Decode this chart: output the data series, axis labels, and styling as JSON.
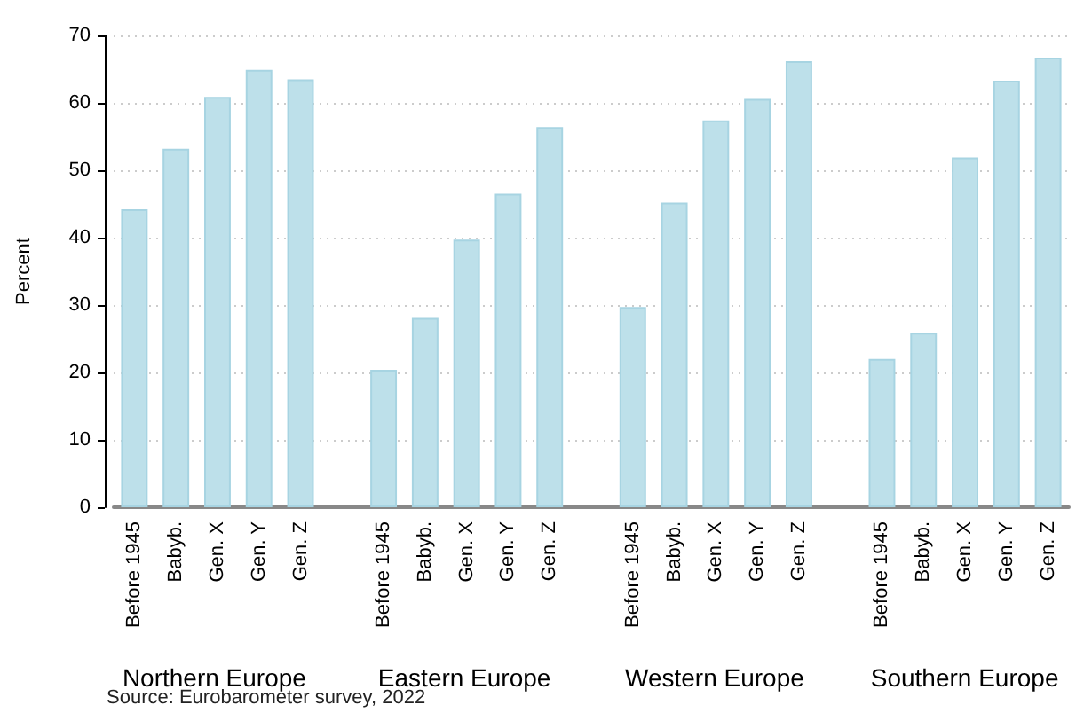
{
  "chart_data": {
    "type": "bar",
    "ylabel": "Percent",
    "categories": [
      "Before 1945",
      "Babyb.",
      "Gen. X",
      "Gen. Y",
      "Gen. Z",
      null,
      "Before 1945",
      "Babyb.",
      "Gen. X",
      "Gen. Y",
      "Gen. Z",
      null,
      "Before 1945",
      "Babyb.",
      "Gen. X",
      "Gen. Y",
      "Gen. Z",
      null,
      "Before 1945",
      "Babyb.",
      "Gen. X",
      "Gen. Y",
      "Gen. Z"
    ],
    "values": [
      44.2,
      53.2,
      60.9,
      64.9,
      63.5,
      null,
      20.4,
      28.1,
      39.7,
      46.5,
      56.4,
      null,
      29.7,
      45.2,
      57.4,
      60.6,
      66.2,
      null,
      22.0,
      25.9,
      51.9,
      63.3,
      66.7
    ],
    "color": "#bde0ea",
    "ylim": [
      0,
      70
    ],
    "yticks": [
      0,
      10,
      20,
      30,
      40,
      50,
      60,
      70
    ],
    "grid": "y",
    "annotations": [
      "Northern Europe",
      "Eastern Europe",
      "Western Europe",
      "Southern Europe",
      "Source: Eurobarometer survey, 2022"
    ]
  }
}
